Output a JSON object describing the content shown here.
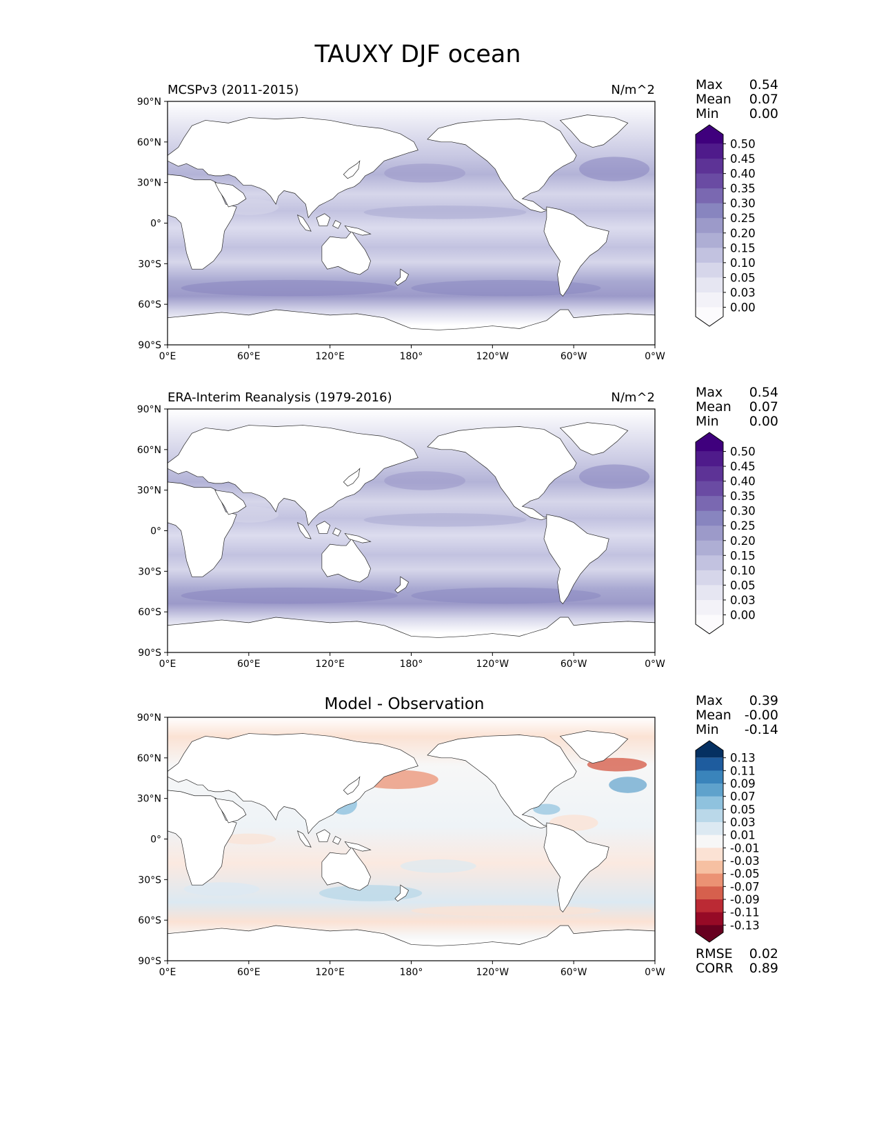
{
  "figure_title": "TAUXY DJF ocean",
  "x_ticks": [
    "0°E",
    "60°E",
    "120°E",
    "180°",
    "120°W",
    "60°W",
    "0°W"
  ],
  "y_ticks": [
    "90°N",
    "60°N",
    "30°N",
    "0°",
    "30°S",
    "60°S",
    "90°S"
  ],
  "panels": [
    {
      "id": "model",
      "title_left": "MCSPv3 (2011-2015)",
      "title_right": "N/m^2",
      "title_center": "",
      "stats": [
        {
          "label": "Max",
          "value": "0.54"
        },
        {
          "label": "Mean",
          "value": "0.07"
        },
        {
          "label": "Min",
          "value": "0.00"
        }
      ],
      "colorbar": {
        "levels": [
          "0.50",
          "0.45",
          "0.40",
          "0.35",
          "0.30",
          "0.25",
          "0.20",
          "0.15",
          "0.10",
          "0.05",
          "0.03",
          "0.00"
        ],
        "colors": [
          "#3f007d",
          "#4f1b8b",
          "#5d3396",
          "#6a4ba3",
          "#7a68b1",
          "#8885bf",
          "#9c9ac9",
          "#aeaed4",
          "#c2c2e0",
          "#d6d6ea",
          "#e6e6f2",
          "#f3f2f8",
          "#fcfbfd"
        ]
      },
      "footer_stats": []
    },
    {
      "id": "obs",
      "title_left": "ERA-Interim Reanalysis (1979-2016)",
      "title_right": "N/m^2",
      "title_center": "",
      "stats": [
        {
          "label": "Max",
          "value": "0.54"
        },
        {
          "label": "Mean",
          "value": "0.07"
        },
        {
          "label": "Min",
          "value": "0.00"
        }
      ],
      "colorbar": {
        "levels": [
          "0.50",
          "0.45",
          "0.40",
          "0.35",
          "0.30",
          "0.25",
          "0.20",
          "0.15",
          "0.10",
          "0.05",
          "0.03",
          "0.00"
        ],
        "colors": [
          "#3f007d",
          "#4f1b8b",
          "#5d3396",
          "#6a4ba3",
          "#7a68b1",
          "#8885bf",
          "#9c9ac9",
          "#aeaed4",
          "#c2c2e0",
          "#d6d6ea",
          "#e6e6f2",
          "#f3f2f8",
          "#fcfbfd"
        ]
      },
      "footer_stats": []
    },
    {
      "id": "diff",
      "title_left": "",
      "title_right": "",
      "title_center": "Model - Observation",
      "stats": [
        {
          "label": "Max",
          "value": "0.39"
        },
        {
          "label": "Mean",
          "value": "-0.00"
        },
        {
          "label": "Min",
          "value": "-0.14"
        }
      ],
      "colorbar": {
        "levels": [
          "0.13",
          "0.11",
          "0.09",
          "0.07",
          "0.05",
          "0.03",
          "0.01",
          "-0.01",
          "-0.03",
          "-0.05",
          "-0.07",
          "-0.09",
          "-0.11",
          "-0.13"
        ],
        "colors": [
          "#053061",
          "#1e5c9e",
          "#3a84bb",
          "#5fa2cc",
          "#8fc2de",
          "#bad8e9",
          "#dce9f2",
          "#f7f7f7",
          "#fbe2d4",
          "#f6c0a2",
          "#eb9274",
          "#d6604d",
          "#bb2a34",
          "#960a26",
          "#67001f"
        ]
      },
      "footer_stats": [
        {
          "label": "RMSE",
          "value": "0.02"
        },
        {
          "label": "CORR",
          "value": "0.89"
        }
      ]
    }
  ]
}
